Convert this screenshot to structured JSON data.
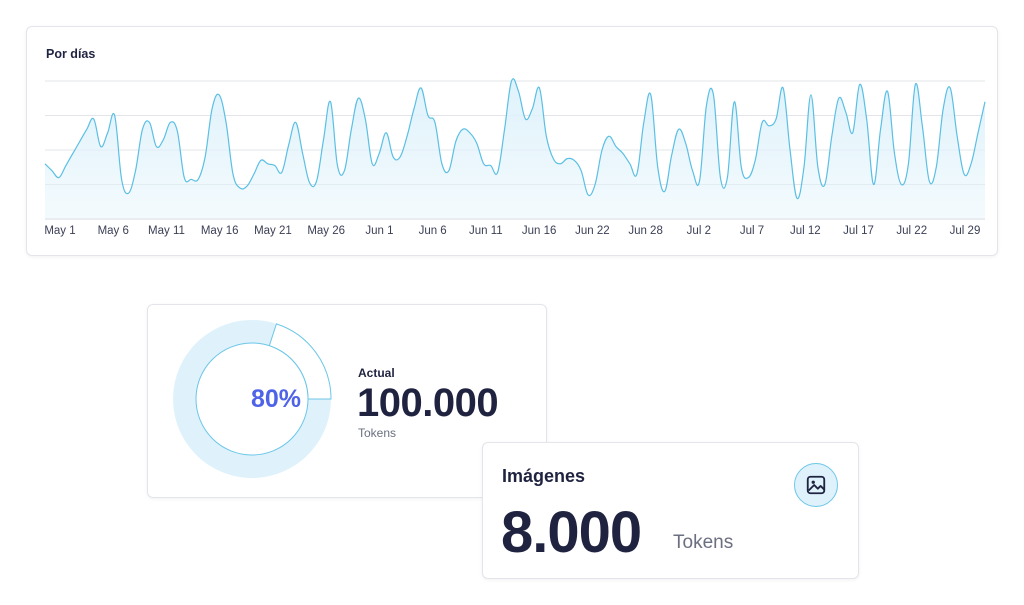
{
  "chart": {
    "title": "Por días"
  },
  "chart_data": {
    "type": "area",
    "title": "Por días",
    "xlabel": "",
    "ylabel": "",
    "x_ticks": [
      "May 1",
      "May 6",
      "May 11",
      "May 16",
      "May 21",
      "May 26",
      "Jun 1",
      "Jun 6",
      "Jun 11",
      "Jun 16",
      "Jun 22",
      "Jun 28",
      "Jul 2",
      "Jul 7",
      "Jul 12",
      "Jul 17",
      "Jul 22",
      "Jul 29"
    ],
    "ylim": [
      0,
      4
    ],
    "grid": true,
    "line_color": "#5bbfe4",
    "fill_color": "#dff2fb",
    "values": [
      1.6,
      1.4,
      1.2,
      1.55,
      1.9,
      2.25,
      2.6,
      2.9,
      2.1,
      2.5,
      3.0,
      1.15,
      0.75,
      1.4,
      2.6,
      2.8,
      2.1,
      2.3,
      2.8,
      2.55,
      1.2,
      1.15,
      1.15,
      1.8,
      3.2,
      3.6,
      2.8,
      1.3,
      0.9,
      0.95,
      1.3,
      1.7,
      1.6,
      1.55,
      1.35,
      2.15,
      2.8,
      1.9,
      1.05,
      1.1,
      2.3,
      3.4,
      1.55,
      1.4,
      2.6,
      3.5,
      2.9,
      1.6,
      1.9,
      2.5,
      1.8,
      1.8,
      2.4,
      3.2,
      3.8,
      3.0,
      2.8,
      1.6,
      1.4,
      2.25,
      2.6,
      2.5,
      2.2,
      1.6,
      1.55,
      1.35,
      2.6,
      4.0,
      3.7,
      2.9,
      3.2,
      3.8,
      2.4,
      1.75,
      1.6,
      1.75,
      1.7,
      1.4,
      0.7,
      1.0,
      2.0,
      2.4,
      2.1,
      1.9,
      1.6,
      1.3,
      2.8,
      3.6,
      1.5,
      0.8,
      1.85,
      2.6,
      2.2,
      1.4,
      1.1,
      3.3,
      3.6,
      1.2,
      1.2,
      3.4,
      1.5,
      1.2,
      1.7,
      2.8,
      2.7,
      2.9,
      3.8,
      2.0,
      0.6,
      1.5,
      3.6,
      1.5,
      1.0,
      2.4,
      3.5,
      3.1,
      2.5,
      3.9,
      2.9,
      1.0,
      2.6,
      3.7,
      1.9,
      1.0,
      1.6,
      3.9,
      2.7,
      1.1,
      1.5,
      3.2,
      3.8,
      2.4,
      1.3,
      1.6,
      2.5,
      3.4
    ]
  },
  "usage": {
    "percent_label": "80%",
    "percent": 80,
    "label": "Actual",
    "value": "100.000",
    "unit": "Tokens",
    "ring_color": "#dff2fb",
    "ring_stroke": "#6cc6e8"
  },
  "images": {
    "title": "Imágenes",
    "value": "8.000",
    "unit": "Tokens",
    "icon": "image-icon"
  }
}
